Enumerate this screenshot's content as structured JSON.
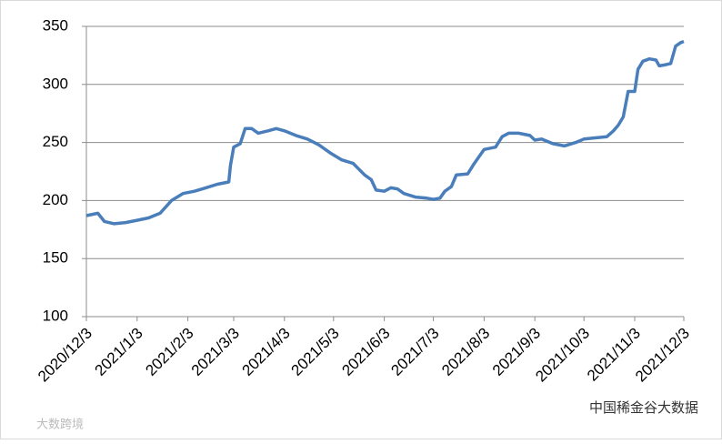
{
  "chart_data": {
    "type": "line",
    "x": [
      "2020/12/3",
      "2020/12/10",
      "2020/12/14",
      "2020/12/20",
      "2020/12/27",
      "2021/1/3",
      "2021/1/10",
      "2021/1/17",
      "2021/1/24",
      "2021/1/31",
      "2021/2/7",
      "2021/2/14",
      "2021/2/21",
      "2021/2/28",
      "2021/3/1",
      "2021/3/3",
      "2021/3/7",
      "2021/3/10",
      "2021/3/14",
      "2021/3/18",
      "2021/3/24",
      "2021/3/29",
      "2021/4/3",
      "2021/4/10",
      "2021/4/17",
      "2021/4/24",
      "2021/5/1",
      "2021/5/8",
      "2021/5/15",
      "2021/5/22",
      "2021/5/26",
      "2021/5/29",
      "2021/6/3",
      "2021/6/7",
      "2021/6/11",
      "2021/6/15",
      "2021/6/22",
      "2021/6/29",
      "2021/7/3",
      "2021/7/7",
      "2021/7/10",
      "2021/7/14",
      "2021/7/17",
      "2021/7/24",
      "2021/7/28",
      "2021/8/3",
      "2021/8/10",
      "2021/8/14",
      "2021/8/18",
      "2021/8/24",
      "2021/8/31",
      "2021/9/3",
      "2021/9/7",
      "2021/9/14",
      "2021/9/21",
      "2021/9/28",
      "2021/10/3",
      "2021/10/10",
      "2021/10/17",
      "2021/10/21",
      "2021/10/24",
      "2021/10/27",
      "2021/10/30",
      "2021/11/3",
      "2021/11/5",
      "2021/11/8",
      "2021/11/12",
      "2021/11/16",
      "2021/11/18",
      "2021/11/22",
      "2021/11/25",
      "2021/11/28",
      "2021/12/1",
      "2021/12/3"
    ],
    "series": [
      {
        "name": null,
        "color": "#4a7ebb",
        "values": [
          187,
          189,
          182,
          180,
          181,
          183,
          185,
          189,
          200,
          206,
          208,
          211,
          214,
          216,
          230,
          246,
          249,
          262,
          262,
          258,
          260,
          262,
          260,
          256,
          253,
          248,
          241,
          235,
          232,
          222,
          218,
          209,
          208,
          211,
          210,
          206,
          203,
          202,
          201,
          202,
          208,
          212,
          222,
          223,
          232,
          244,
          246,
          255,
          258,
          258,
          256,
          252,
          253,
          249,
          247,
          250,
          253,
          254,
          255,
          260,
          265,
          272,
          294,
          294,
          313,
          320,
          322,
          321,
          316,
          317,
          318,
          333,
          336,
          337
        ]
      }
    ],
    "xlim": [
      "2020/12/3",
      "2021/12/3"
    ],
    "xticks": [
      "2020/12/3",
      "2021/1/3",
      "2021/2/3",
      "2021/3/3",
      "2021/4/3",
      "2021/5/3",
      "2021/6/3",
      "2021/7/3",
      "2021/8/3",
      "2021/9/3",
      "2021/10/3",
      "2021/11/3",
      "2021/12/3"
    ],
    "ylim": [
      100,
      350
    ],
    "yticks": [
      100,
      150,
      200,
      250,
      300,
      350
    ],
    "grid": true,
    "watermarks": [
      "中国稀金谷大数据",
      "大数跨境"
    ]
  }
}
